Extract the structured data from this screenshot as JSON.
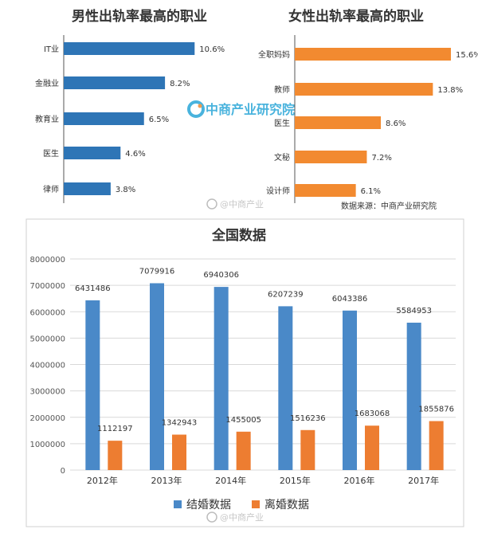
{
  "chart_data": [
    {
      "type": "bar",
      "orientation": "horizontal",
      "title": "男性出轨率最高的职业",
      "categories": [
        "IT业",
        "金融业",
        "教育业",
        "医生",
        "律师"
      ],
      "values": [
        10.6,
        8.2,
        6.5,
        4.6,
        3.8
      ],
      "value_labels": [
        "10.6%",
        "8.2%",
        "6.5%",
        "4.6%",
        "3.8%"
      ],
      "xlim": [
        0,
        14
      ],
      "color": "#2e75b6"
    },
    {
      "type": "bar",
      "orientation": "horizontal",
      "title": "女性出轨率最高的职业",
      "categories": [
        "全职妈妈",
        "教师",
        "医生",
        "文秘",
        "设计师"
      ],
      "values": [
        15.6,
        13.8,
        8.6,
        7.2,
        6.1
      ],
      "value_labels": [
        "15.6%",
        "13.8%",
        "8.6%",
        "7.2%",
        "6.1%"
      ],
      "xlim": [
        0,
        16
      ],
      "color": "#f28a30"
    },
    {
      "type": "bar",
      "title": "全国数据",
      "categories": [
        "2012年",
        "2013年",
        "2014年",
        "2015年",
        "2016年",
        "2017年"
      ],
      "ylim": [
        0,
        8000000
      ],
      "yticks": [
        "0",
        "1000000",
        "2000000",
        "3000000",
        "4000000",
        "5000000",
        "6000000",
        "7000000",
        "8000000"
      ],
      "grid": true,
      "legend": "bottom",
      "series": [
        {
          "name": "结婚数据",
          "color": "#4a89c8",
          "values": [
            6431486,
            7079916,
            6940306,
            6207239,
            6043386,
            5584953
          ]
        },
        {
          "name": "离婚数据",
          "color": "#ed7d31",
          "values": [
            1112197,
            1342943,
            1455005,
            1516236,
            1683068,
            1855876
          ]
        }
      ]
    }
  ],
  "source_note": "数据来源：中商产业研究院",
  "watermarks": [
    "中商产业研究院",
    "@中商产业"
  ]
}
